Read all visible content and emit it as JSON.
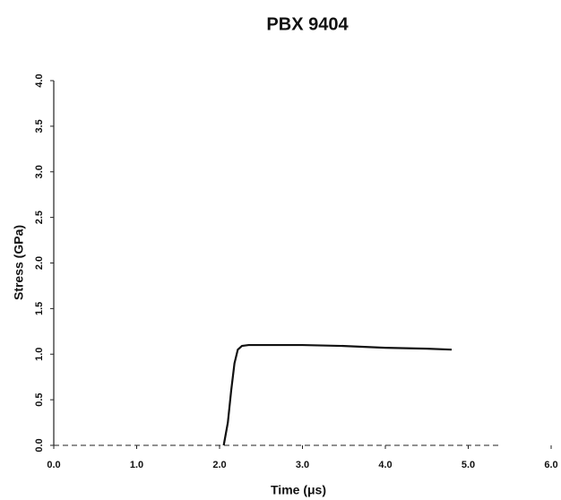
{
  "chart_data": {
    "type": "line",
    "title": "PBX 9404",
    "x_label": "Time (μs)",
    "y_label": "Stress (GPa)",
    "xlim": [
      0,
      6
    ],
    "ylim": [
      0,
      4
    ],
    "xticks": [
      {
        "value": 0,
        "label": "0.0"
      },
      {
        "value": 1,
        "label": "1.0"
      },
      {
        "value": 2,
        "label": "2.0"
      },
      {
        "value": 3,
        "label": "3.0"
      },
      {
        "value": 4,
        "label": "4.0"
      },
      {
        "value": 5,
        "label": "5.0"
      },
      {
        "value": 6,
        "label": "6.0"
      }
    ],
    "yticks": [
      {
        "value": 0,
        "label": "0.0"
      },
      {
        "value": 0.5,
        "label": "0.5"
      },
      {
        "value": 1,
        "label": "1.0"
      },
      {
        "value": 1.5,
        "label": "1.5"
      },
      {
        "value": 2,
        "label": "2.0"
      },
      {
        "value": 2.5,
        "label": "2.5"
      },
      {
        "value": 3,
        "label": "3.0"
      },
      {
        "value": 3.5,
        "label": "3.5"
      },
      {
        "value": 4,
        "label": "4.0"
      }
    ],
    "x": [
      2.05,
      2.1,
      2.14,
      2.18,
      2.22,
      2.27,
      2.35,
      2.5,
      3.0,
      3.5,
      4.0,
      4.5,
      4.8
    ],
    "series": [
      {
        "name": "Stress",
        "color": "#111111",
        "values": [
          0,
          0.25,
          0.6,
          0.9,
          1.05,
          1.09,
          1.1,
          1.1,
          1.1,
          1.09,
          1.07,
          1.06,
          1.05
        ]
      }
    ]
  }
}
